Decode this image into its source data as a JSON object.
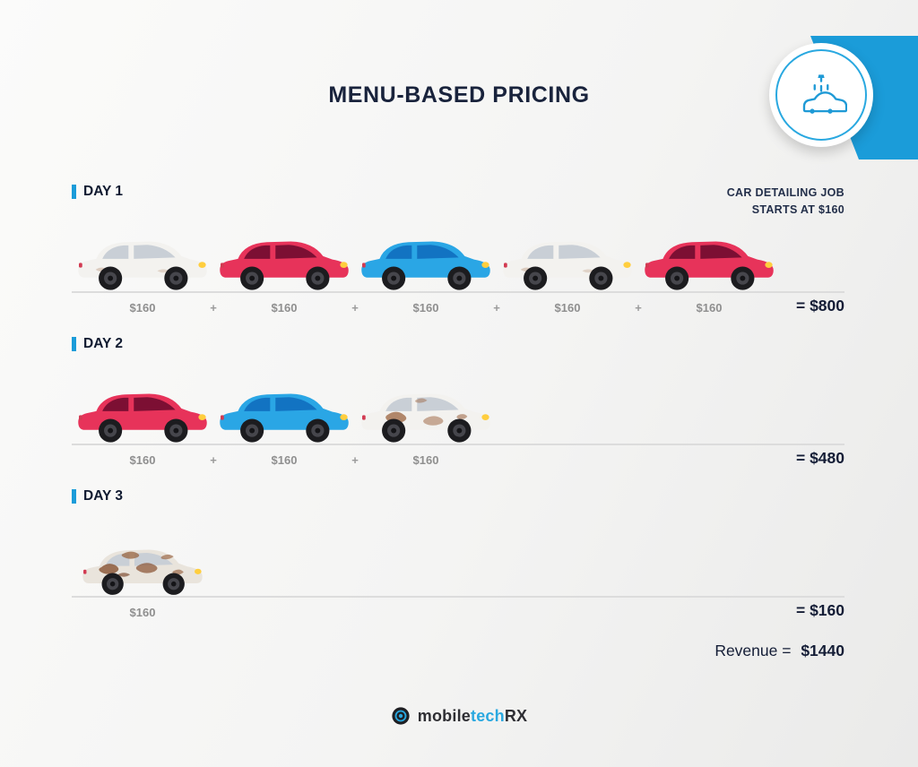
{
  "page": {
    "title": "MENU-BASED PRICING"
  },
  "badge": {
    "icon": "car-wash-icon"
  },
  "note": {
    "line1": "CAR DETAILING JOB",
    "line2": "STARTS AT $160"
  },
  "misc": {
    "plus": "+"
  },
  "days": [
    {
      "label": "DAY 1",
      "cars": [
        "white",
        "red",
        "blue",
        "white",
        "red"
      ],
      "prices": [
        "$160",
        "$160",
        "$160",
        "$160",
        "$160"
      ],
      "total": "= $800"
    },
    {
      "label": "DAY 2",
      "cars": [
        "red",
        "blue",
        "dirty"
      ],
      "prices": [
        "$160",
        "$160",
        "$160"
      ],
      "total": "= $480"
    },
    {
      "label": "DAY 3",
      "cars": [
        "very_dirty"
      ],
      "prices": [
        "$160"
      ],
      "total": "= $160"
    }
  ],
  "revenue": {
    "label": "Revenue =",
    "value": "$1440"
  },
  "footer": {
    "brand_mobile": "mobile",
    "brand_tech": "tech",
    "brand_rx": "RX"
  },
  "colors": {
    "accent_blue": "#1b9cd9",
    "title_navy": "#19233c",
    "price_gray": "#8f8f8f",
    "line_gray": "#dcdcdc",
    "headlight_yellow": "#ffce3e",
    "cars": {
      "white": {
        "body": "#f3f2ef",
        "window": "#c9cfd6"
      },
      "red": {
        "body": "#e7335a",
        "window": "#7c0f33"
      },
      "blue": {
        "body": "#2aa6e5",
        "window": "#1273c2"
      },
      "dirty": {
        "body": "#f3f2ef",
        "window": "#c9cfd6",
        "dirt": "#a06b49"
      },
      "very_dirty": {
        "body": "#e9e4dc",
        "window": "#c9cfd6",
        "dirt": "#8d5a3b"
      }
    }
  },
  "chart_data": {
    "type": "table",
    "title": "MENU-BASED PRICING",
    "note": "CAR DETAILING JOB STARTS AT $160",
    "categories": [
      "DAY 1",
      "DAY 2",
      "DAY 3"
    ],
    "series": [
      {
        "name": "cars_detailed",
        "values": [
          5,
          3,
          1
        ]
      },
      {
        "name": "price_per_car_usd",
        "values": [
          160,
          160,
          160
        ]
      },
      {
        "name": "daily_total_usd",
        "values": [
          800,
          480,
          160
        ]
      }
    ],
    "totals": {
      "revenue_usd": 1440
    }
  }
}
